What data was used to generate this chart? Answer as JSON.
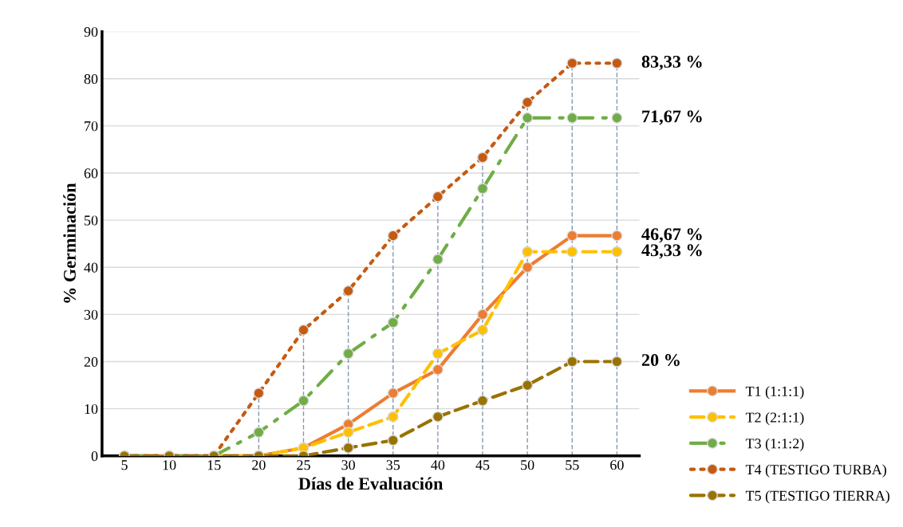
{
  "chart_data": {
    "type": "line",
    "xlabel": "Días de Evaluación",
    "ylabel": "% Germinación",
    "categories": [
      "5",
      "10",
      "15",
      "20",
      "25",
      "30",
      "35",
      "40",
      "45",
      "50",
      "55",
      "60"
    ],
    "series": [
      {
        "name": "T1 (1:1:1)",
        "color": "#ed7d31",
        "line_style": "solid",
        "values": [
          0,
          0,
          0,
          0,
          1.7,
          6.7,
          13.3,
          18.3,
          30,
          40,
          46.7,
          46.7
        ]
      },
      {
        "name": "T2 (2:1:1)",
        "color": "#ffc000",
        "line_style": "dashed",
        "values": [
          null,
          null,
          0,
          0,
          1.7,
          5,
          8.3,
          21.7,
          26.7,
          43.3,
          43.3,
          43.3
        ]
      },
      {
        "name": "T3 (1:1:2)",
        "color": "#70ad47",
        "line_style": "dashdot",
        "values": [
          0,
          0,
          0,
          5,
          11.7,
          21.7,
          28.3,
          41.7,
          56.7,
          71.7,
          71.7,
          71.7
        ]
      },
      {
        "name": "T4 (TESTIGO TURBA)",
        "color": "#c55a11",
        "line_style": "dotted",
        "values": [
          0,
          0,
          0,
          13.3,
          26.7,
          35,
          46.7,
          55,
          63.3,
          75,
          83.3,
          83.3
        ]
      },
      {
        "name": "T5 (TESTIGO TIERRA)",
        "color": "#997300",
        "line_style": "dashed",
        "values": [
          0,
          0,
          0,
          0,
          0,
          1.7,
          3.3,
          8.3,
          11.7,
          15,
          20,
          20
        ]
      }
    ],
    "ylim": [
      0,
      90
    ],
    "yticks": [
      0,
      10,
      20,
      30,
      40,
      50,
      60,
      70,
      80,
      90
    ],
    "grid": "y",
    "legend": "bottom right",
    "marker": "circle",
    "ref_lines": [
      {
        "axis": "x",
        "value": "20",
        "color": "#8497b0",
        "line_style": "dashed"
      },
      {
        "axis": "x",
        "value": "25",
        "color": "#8497b0",
        "line_style": "dashed"
      },
      {
        "axis": "x",
        "value": "30",
        "color": "#8497b0",
        "line_style": "dashed"
      },
      {
        "axis": "x",
        "value": "35",
        "color": "#8497b0",
        "line_style": "dashed"
      },
      {
        "axis": "x",
        "value": "40",
        "color": "#8497b0",
        "line_style": "dashed"
      },
      {
        "axis": "x",
        "value": "45",
        "color": "#8497b0",
        "line_style": "dashed"
      },
      {
        "axis": "x",
        "value": "50",
        "color": "#8497b0",
        "line_style": "dashed"
      },
      {
        "axis": "x",
        "value": "55",
        "color": "#8497b0",
        "line_style": "dashed"
      },
      {
        "axis": "x",
        "value": "60",
        "color": "#8497b0",
        "line_style": "dashed"
      }
    ],
    "annotations": [
      {
        "text": "83,33 %",
        "x": "60",
        "y": 83.3
      },
      {
        "text": "71,67 %",
        "x": "60",
        "y": 71.7
      },
      {
        "text": "46,67 %",
        "x": "60",
        "y": 46.7
      },
      {
        "text": "43,33 %",
        "x": "60",
        "y": 43.3
      },
      {
        "text": "20 %",
        "x": "60",
        "y": 20
      }
    ]
  }
}
